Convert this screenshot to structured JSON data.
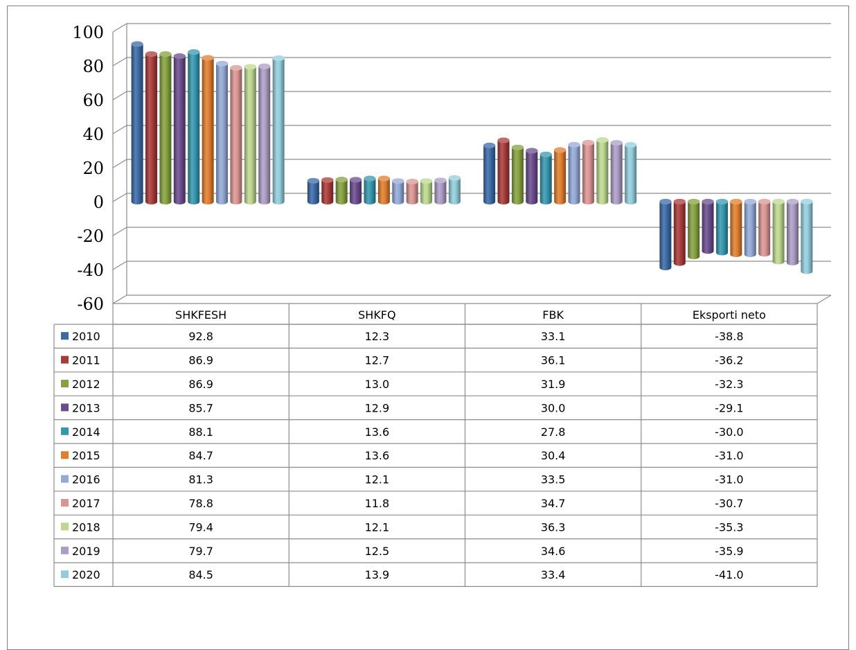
{
  "chart_data": {
    "type": "bar",
    "title": "",
    "xlabel": "",
    "ylabel": "",
    "ylim": [
      -60,
      100
    ],
    "yticks": [
      100,
      80,
      60,
      40,
      20,
      0,
      -20,
      -40,
      -60
    ],
    "grid": true,
    "legend_placement": "data-table-left",
    "categories": [
      "SHKFESH",
      "SHKFQ",
      "FBK",
      "Eksporti neto"
    ],
    "series": [
      {
        "name": "2010",
        "color": "#3B6AA7",
        "values": [
          92.8,
          12.3,
          33.1,
          -38.8
        ],
        "labels": [
          "92.8",
          "12.3",
          "33.1",
          "-38.8"
        ]
      },
      {
        "name": "2011",
        "color": "#A93B39",
        "values": [
          86.9,
          12.7,
          36.1,
          -36.2
        ],
        "labels": [
          "86.9",
          "12.7",
          "36.1",
          "-36.2"
        ]
      },
      {
        "name": "2012",
        "color": "#86A13F",
        "values": [
          86.9,
          13.0,
          31.9,
          -32.3
        ],
        "labels": [
          "86.9",
          "13.0",
          "31.9",
          "-32.3"
        ]
      },
      {
        "name": "2013",
        "color": "#6A4C8E",
        "values": [
          85.7,
          12.9,
          30.0,
          -29.1
        ],
        "labels": [
          "85.7",
          "12.9",
          "30.0",
          "-29.1"
        ]
      },
      {
        "name": "2014",
        "color": "#3698AF",
        "values": [
          88.1,
          13.6,
          27.8,
          -30.0
        ],
        "labels": [
          "88.1",
          "13.6",
          "27.8",
          "-30.0"
        ]
      },
      {
        "name": "2015",
        "color": "#E07E2E",
        "values": [
          84.7,
          13.6,
          30.4,
          -31.0
        ],
        "labels": [
          "84.7",
          "13.6",
          "30.4",
          "-31.0"
        ]
      },
      {
        "name": "2016",
        "color": "#94A9D7",
        "values": [
          81.3,
          12.1,
          33.5,
          -31.0
        ],
        "labels": [
          "81.3",
          "12.1",
          "33.5",
          "-31.0"
        ]
      },
      {
        "name": "2017",
        "color": "#DA9593",
        "values": [
          78.8,
          11.8,
          34.7,
          -30.7
        ],
        "labels": [
          "78.8",
          "11.8",
          "34.7",
          "-30.7"
        ]
      },
      {
        "name": "2018",
        "color": "#BCD88F",
        "values": [
          79.4,
          12.1,
          36.3,
          -35.3
        ],
        "labels": [
          "79.4",
          "12.1",
          "36.3",
          "-35.3"
        ]
      },
      {
        "name": "2019",
        "color": "#AB9DC5",
        "values": [
          79.7,
          12.5,
          34.6,
          -35.9
        ],
        "labels": [
          "79.7",
          "12.5",
          "34.6",
          "-35.9"
        ]
      },
      {
        "name": "2020",
        "color": "#93CDDD",
        "values": [
          84.5,
          13.9,
          33.4,
          -41.0
        ],
        "labels": [
          "84.5",
          "13.9",
          "33.4",
          "-41.0"
        ]
      }
    ]
  }
}
